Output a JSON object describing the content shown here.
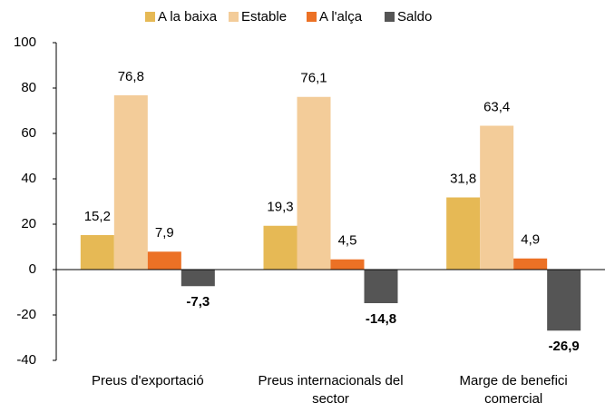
{
  "chart_data": {
    "type": "bar",
    "categories": [
      "Preus d'exportació",
      "Preus internacionals del sector",
      "Marge de benefici comercial"
    ],
    "series": [
      {
        "name": "A la baixa",
        "color": "#e6b955",
        "values": [
          15.2,
          19.3,
          31.8
        ],
        "value_labels": [
          "15,2",
          "19,3",
          "31,8"
        ]
      },
      {
        "name": "Estable",
        "color": "#f3cc99",
        "values": [
          76.8,
          76.1,
          63.4
        ],
        "value_labels": [
          "76,8",
          "76,1",
          "63,4"
        ]
      },
      {
        "name": "A l'alça",
        "color": "#ec7125",
        "values": [
          7.9,
          4.5,
          4.9
        ],
        "value_labels": [
          "7,9",
          "4,5",
          "4,9"
        ]
      },
      {
        "name": "Saldo",
        "color": "#555555",
        "values": [
          -7.3,
          -14.8,
          -26.9
        ],
        "value_labels": [
          "-7,3",
          "-14,8",
          "-26,9"
        ]
      }
    ],
    "ylim": [
      -40,
      100
    ],
    "yticks": [
      -40,
      -20,
      0,
      20,
      40,
      60,
      80,
      100
    ],
    "grid": false,
    "legend": "top"
  }
}
